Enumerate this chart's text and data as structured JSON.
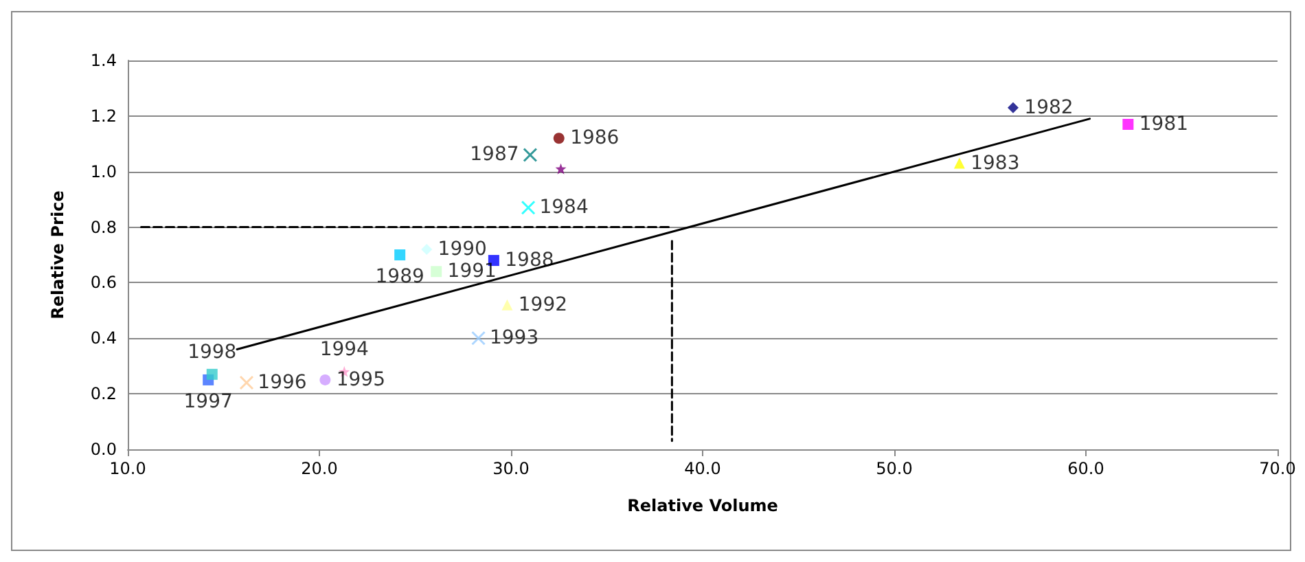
{
  "chart_data": {
    "type": "scatter",
    "xlabel": "Relative Volume",
    "ylabel": "Relative Price",
    "xlim": [
      10,
      70
    ],
    "xticks": [
      {
        "value": 10,
        "label": "10.0"
      },
      {
        "value": 20,
        "label": "20.0"
      },
      {
        "value": 30,
        "label": "30.0"
      },
      {
        "value": 40,
        "label": "40.0"
      },
      {
        "value": 50,
        "label": "50.0"
      },
      {
        "value": 60,
        "label": "60.0"
      },
      {
        "value": 70,
        "label": "70.0"
      }
    ],
    "ylim": [
      0,
      1.4
    ],
    "yticks": [
      {
        "value": 0,
        "label": "0.0"
      },
      {
        "value": 0.2,
        "label": "0.2"
      },
      {
        "value": 0.4,
        "label": "0.4"
      },
      {
        "value": 0.6,
        "label": "0.6"
      },
      {
        "value": 0.8,
        "label": "0.8"
      },
      {
        "value": 1,
        "label": "1.0"
      },
      {
        "value": 1.2,
        "label": "1.2"
      },
      {
        "value": 1.4,
        "label": "1.4"
      }
    ],
    "grid": "y",
    "legend": false,
    "data_labels": false,
    "series": [
      {
        "name": "1981",
        "color": "#ff00ff",
        "marker": "square",
        "x": [
          62.2
        ],
        "values": [
          1.17
        ]
      },
      {
        "name": "1982",
        "color": "#000080",
        "marker": "diamond",
        "x": [
          56.2
        ],
        "values": [
          1.23
        ]
      },
      {
        "name": "1983",
        "color": "#ffff00",
        "marker": "triangle",
        "x": [
          53.4
        ],
        "values": [
          1.03
        ]
      },
      {
        "name": "1984",
        "color": "#00ffff",
        "marker": "cross",
        "x": [
          30.9
        ],
        "values": [
          0.87
        ]
      },
      {
        "color": "#800080",
        "marker": "star",
        "x": [
          32.6
        ],
        "values": [
          1.01
        ]
      },
      {
        "name": "1986",
        "color": "#800000",
        "marker": "circle",
        "x": [
          32.5
        ],
        "values": [
          1.12
        ]
      },
      {
        "name": "1987",
        "color": "#008080",
        "marker": "cross",
        "x": [
          31.0
        ],
        "values": [
          1.06
        ]
      },
      {
        "name": "1988",
        "color": "#0000ff",
        "marker": "square",
        "x": [
          29.1
        ],
        "values": [
          0.68
        ]
      },
      {
        "name": "1989",
        "color": "#00ccff",
        "marker": "square",
        "x": [
          24.2
        ],
        "values": [
          0.7
        ]
      },
      {
        "name": "1990",
        "color": "#ccffff",
        "marker": "diamond",
        "x": [
          25.6
        ],
        "values": [
          0.72
        ]
      },
      {
        "name": "1991",
        "color": "#ccffcc",
        "marker": "square",
        "x": [
          26.1
        ],
        "values": [
          0.64
        ]
      },
      {
        "name": "1992",
        "color": "#ffff99",
        "marker": "triangle",
        "x": [
          29.8
        ],
        "values": [
          0.52
        ]
      },
      {
        "name": "1993",
        "color": "#99ccff",
        "marker": "cross",
        "x": [
          28.3
        ],
        "values": [
          0.4
        ]
      },
      {
        "name": "1994",
        "color": "#ff99cc",
        "marker": "star",
        "x": [
          21.3
        ],
        "values": [
          0.28
        ]
      },
      {
        "name": "1995",
        "color": "#cc99ff",
        "marker": "circle",
        "x": [
          20.3
        ],
        "values": [
          0.25
        ]
      },
      {
        "name": "1996",
        "color": "#ffcc99",
        "marker": "cross",
        "x": [
          16.2
        ],
        "values": [
          0.24
        ]
      },
      {
        "name": "1997",
        "color": "#3366ff",
        "marker": "square",
        "x": [
          14.2
        ],
        "values": [
          0.25
        ]
      },
      {
        "name": "1998",
        "color": "#33cccc",
        "marker": "square",
        "x": [
          14.4
        ],
        "values": [
          0.27
        ]
      },
      {
        "type": "line",
        "color": "#000000",
        "marker": "none",
        "line_style": "solid",
        "x": [
          15.7,
          60.2
        ],
        "values": [
          0.36,
          1.19
        ]
      },
      {
        "type": "line",
        "color": "#000000",
        "marker": "none",
        "line_style": "dashed",
        "x": [
          10.7,
          38.4
        ],
        "values": [
          0.8,
          0.8
        ]
      },
      {
        "type": "line",
        "color": "#000000",
        "marker": "none",
        "line_style": "dashed",
        "x": [
          38.4,
          38.4
        ],
        "values": [
          0.75,
          0.03
        ]
      }
    ]
  }
}
